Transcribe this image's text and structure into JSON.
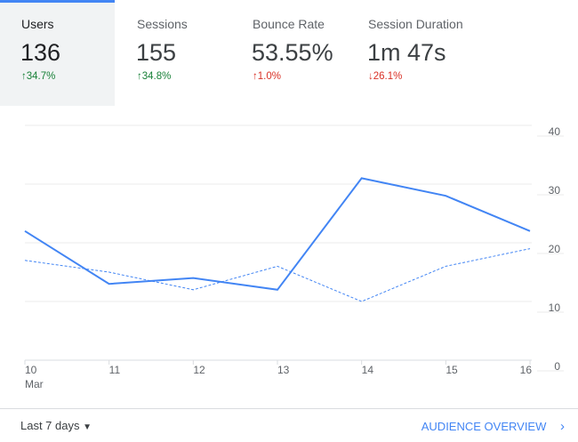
{
  "tabs": [
    {
      "label": "Users",
      "value": "136",
      "change": "34.7%",
      "direction": "up",
      "active": true
    },
    {
      "label": "Sessions",
      "value": "155",
      "change": "34.8%",
      "direction": "up",
      "active": false
    },
    {
      "label": "Bounce Rate",
      "value": "53.55%",
      "change": "1.0%",
      "direction": "up",
      "negative": true,
      "active": false
    },
    {
      "label": "Session Duration",
      "value": "1m 47s",
      "change": "26.1%",
      "direction": "down",
      "active": false
    }
  ],
  "colors": {
    "accent": "#4285f4",
    "positive": "#188038",
    "negative": "#d93025"
  },
  "chart_data": {
    "type": "line",
    "categories": [
      "10",
      "11",
      "12",
      "13",
      "14",
      "15",
      "16"
    ],
    "x_sublabel": "Mar",
    "ylim": [
      0,
      40
    ],
    "yticks": [
      "0",
      "10",
      "20",
      "30",
      "40"
    ],
    "y_axis_position": "right",
    "grid": true,
    "series": [
      {
        "style": "solid",
        "values": [
          22,
          13,
          14,
          12,
          31,
          28,
          22
        ]
      },
      {
        "style": "dashed",
        "values": [
          17,
          15,
          12,
          16,
          10,
          16,
          19
        ]
      }
    ]
  },
  "footer": {
    "range_label": "Last 7 days",
    "link_label": "AUDIENCE OVERVIEW"
  }
}
